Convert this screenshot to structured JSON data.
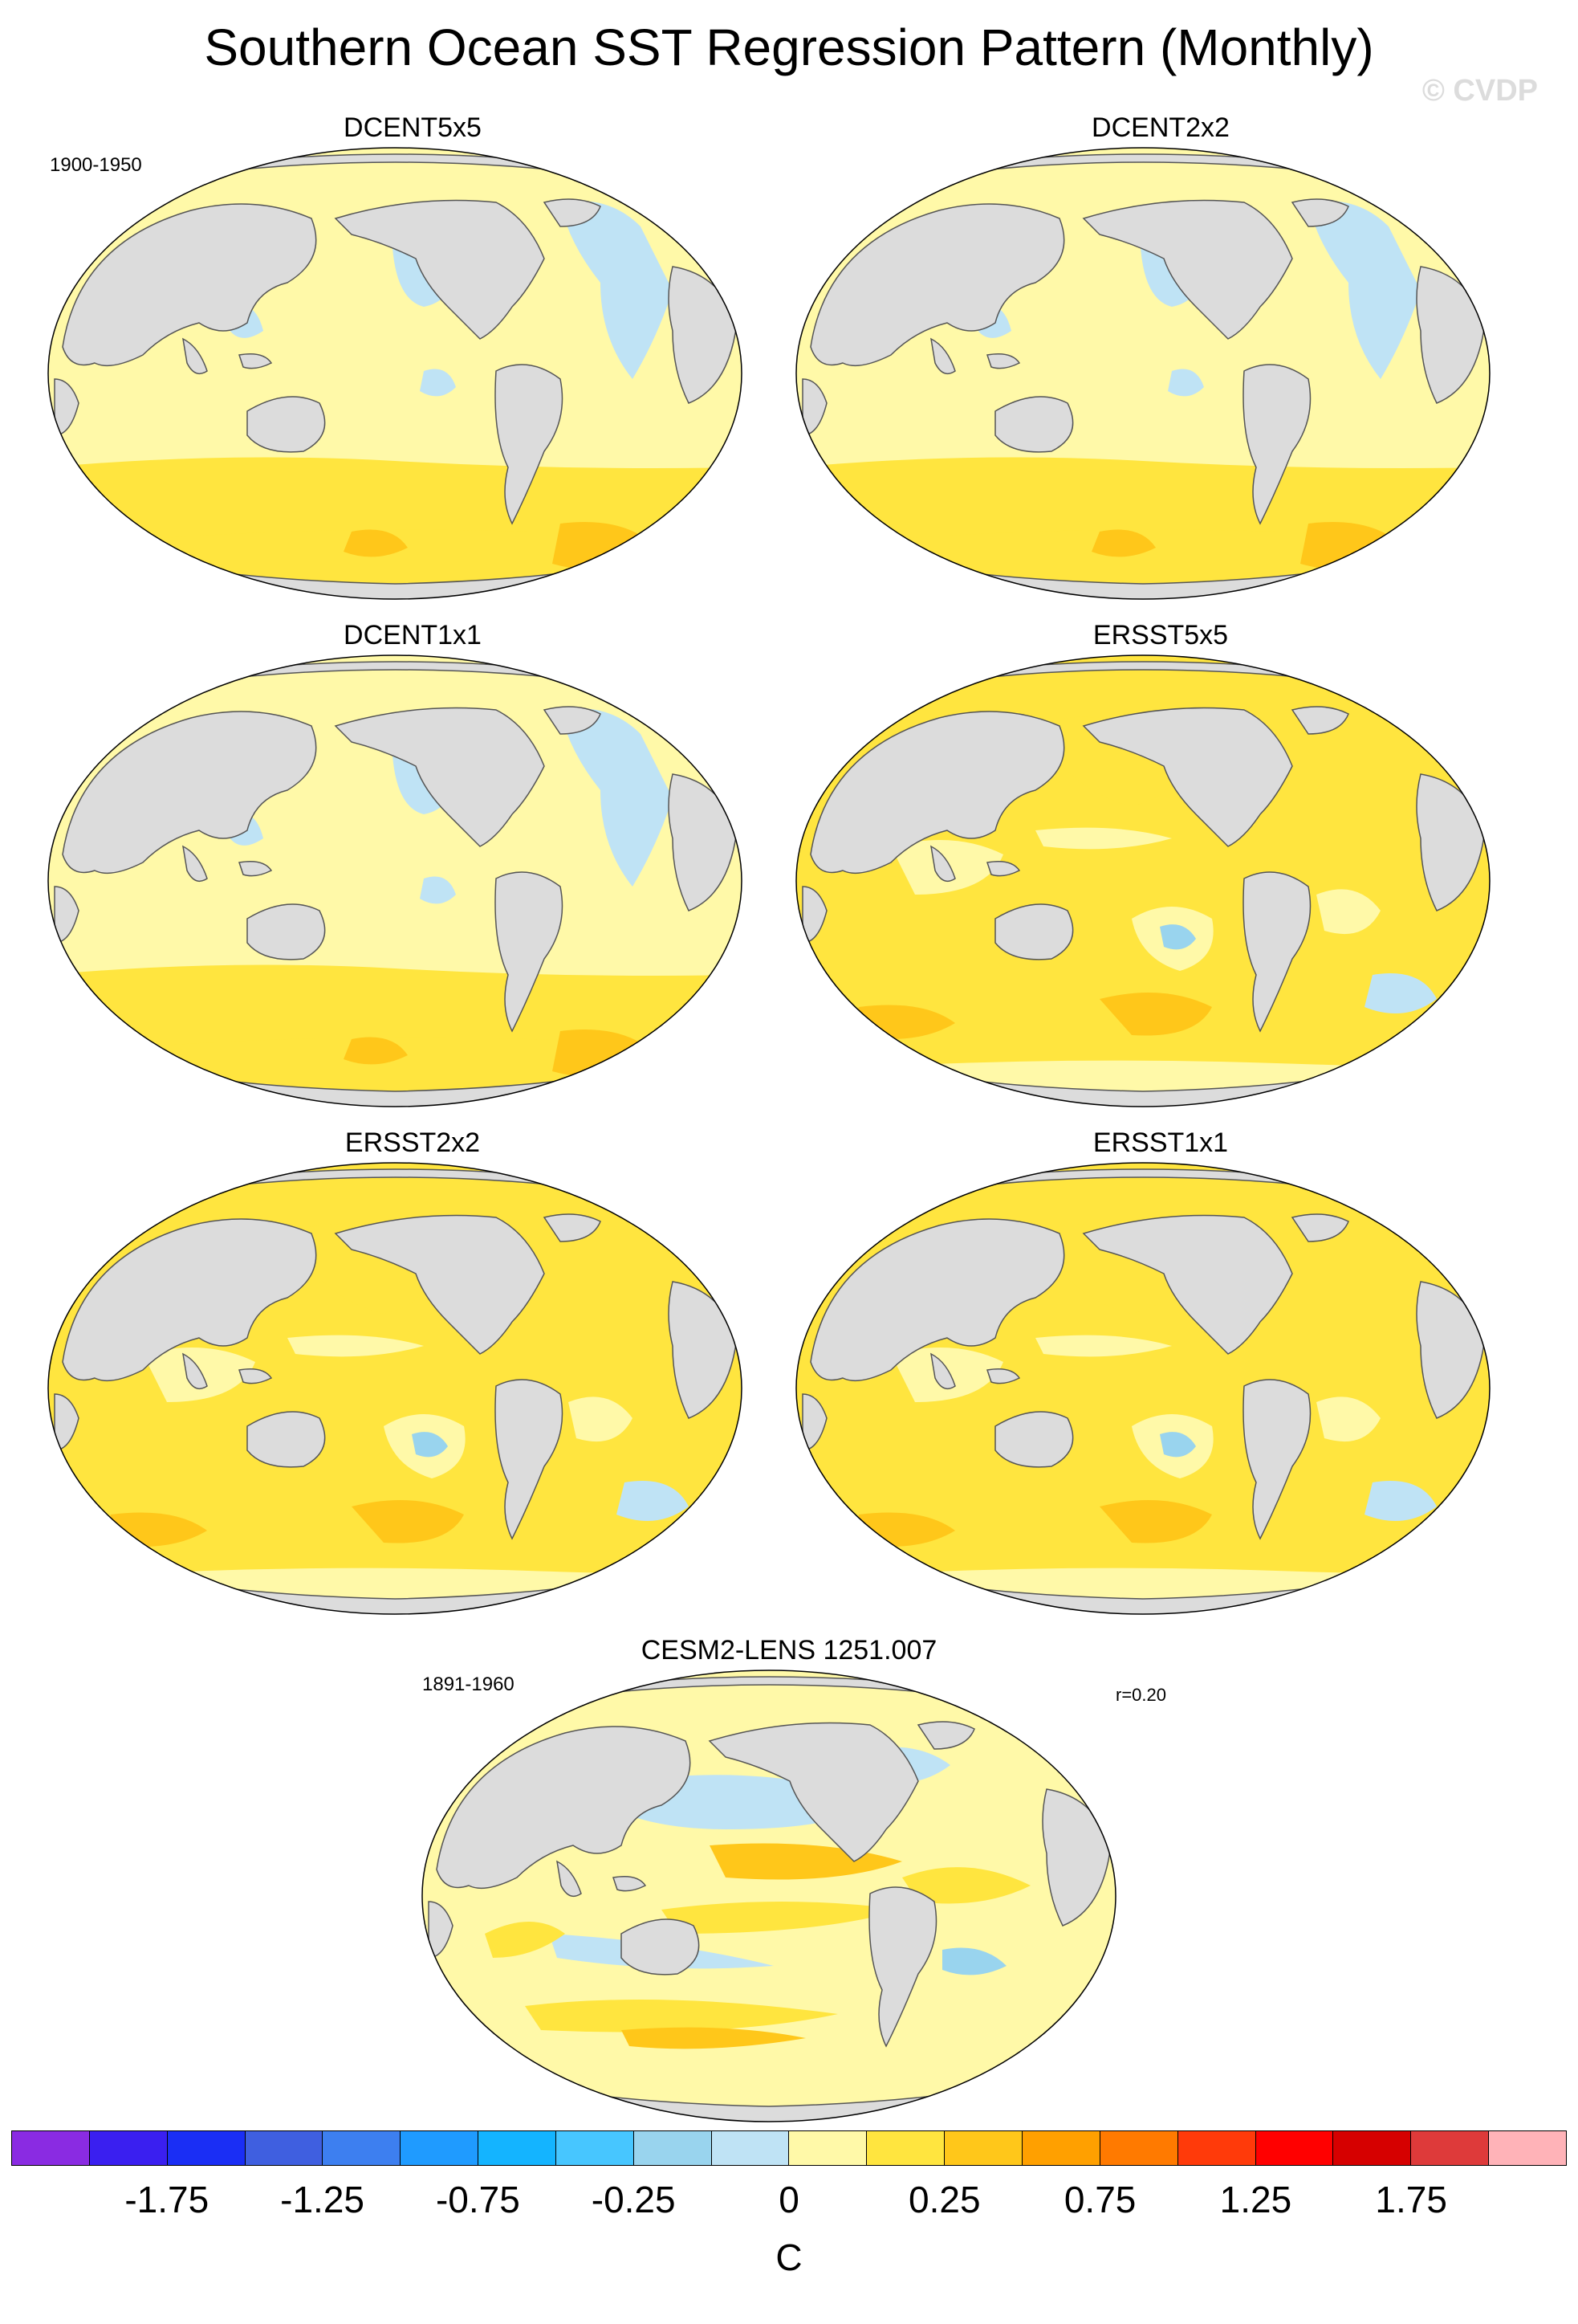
{
  "figure": {
    "title": "Southern Ocean SST Regression Pattern (Monthly)",
    "watermark": "© CVDP"
  },
  "panels": [
    {
      "title": "DCENT5x5",
      "period": "1900-1950",
      "style": "dcent",
      "stat": ""
    },
    {
      "title": "DCENT2x2",
      "period": "",
      "style": "dcent",
      "stat": ""
    },
    {
      "title": "DCENT1x1",
      "period": "",
      "style": "dcent",
      "stat": ""
    },
    {
      "title": "ERSST5x5",
      "period": "",
      "style": "ersst",
      "stat": ""
    },
    {
      "title": "ERSST2x2",
      "period": "",
      "style": "ersst",
      "stat": ""
    },
    {
      "title": "ERSST1x1",
      "period": "",
      "style": "ersst",
      "stat": ""
    },
    {
      "title": "CESM2-LENS 1251.007",
      "period": "1891-1960",
      "style": "cesm",
      "stat": "r=0.20"
    }
  ],
  "colorbar": {
    "units": "C",
    "colors": [
      "#8a2be2",
      "#3a1ff0",
      "#1a2ef5",
      "#3f5fe0",
      "#3d7ff0",
      "#1f9bff",
      "#14b4ff",
      "#47c6ff",
      "#99d4ee",
      "#bfe3f5",
      "#fff9a8",
      "#ffe53f",
      "#ffc71a",
      "#ffa000",
      "#ff7a00",
      "#ff3a0a",
      "#ff0000",
      "#d60000",
      "#de3a3a",
      "#ffb3b8"
    ],
    "tick_labels": [
      "-1.75",
      "-1.25",
      "-0.75",
      "-0.25",
      "0",
      "0.25",
      "0.75",
      "1.25",
      "1.75"
    ]
  }
}
